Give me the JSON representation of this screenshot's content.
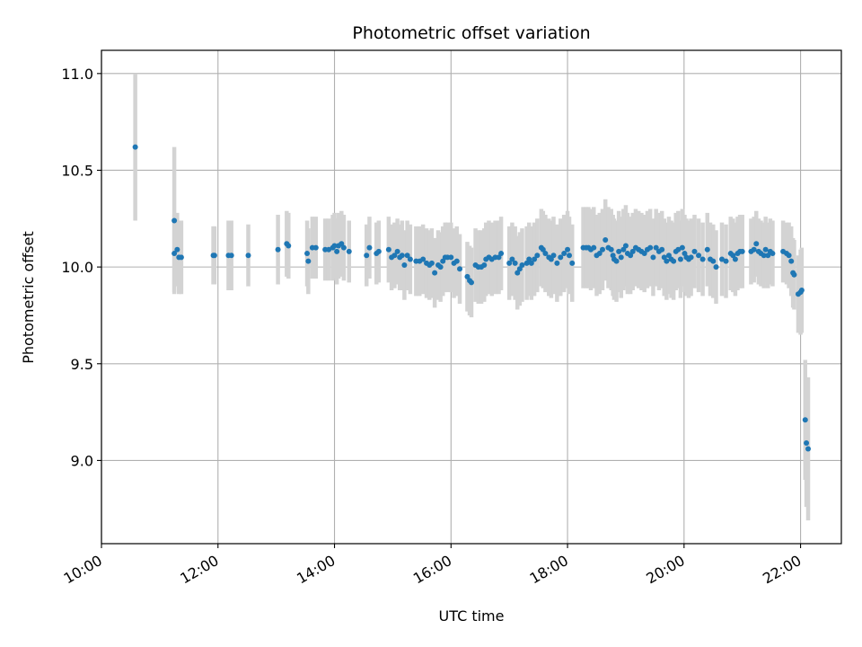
{
  "chart_data": {
    "type": "scatter",
    "title": "Photometric offset variation",
    "xlabel": "UTC time",
    "ylabel": "Photometric offset",
    "x_unit": "hours UTC",
    "xlim": [
      10.0,
      22.7
    ],
    "ylim": [
      8.57,
      11.12
    ],
    "x_ticks": [
      10,
      12,
      14,
      16,
      18,
      20,
      22
    ],
    "x_tick_labels": [
      "10:00",
      "12:00",
      "14:00",
      "16:00",
      "18:00",
      "20:00",
      "22:00"
    ],
    "y_ticks": [
      9.0,
      9.5,
      10.0,
      10.5,
      11.0
    ],
    "y_tick_labels": [
      "9.0",
      "9.5",
      "10.0",
      "10.5",
      "11.0"
    ],
    "grid": true,
    "legend": "none",
    "colors": {
      "point": "#1f77b4",
      "errorbar": "#d3d3d3",
      "grid": "#b0b0b0"
    },
    "series": [
      {
        "points": [
          [
            10.58,
            10.62,
            0.38
          ],
          [
            11.25,
            10.24,
            0.38
          ],
          [
            11.25,
            10.07,
            0.2
          ],
          [
            11.3,
            10.09,
            0.19
          ],
          [
            11.33,
            10.05,
            0.19
          ],
          [
            11.37,
            10.05,
            0.19
          ],
          [
            11.92,
            10.06,
            0.15
          ],
          [
            11.94,
            10.06,
            0.15
          ],
          [
            12.18,
            10.06,
            0.18
          ],
          [
            12.23,
            10.06,
            0.18
          ],
          [
            12.52,
            10.06,
            0.16
          ],
          [
            13.03,
            10.09,
            0.18
          ],
          [
            13.18,
            10.12,
            0.17
          ],
          [
            13.21,
            10.11,
            0.17
          ],
          [
            13.53,
            10.07,
            0.17
          ],
          [
            13.55,
            10.03,
            0.17
          ],
          [
            13.62,
            10.1,
            0.16
          ],
          [
            13.68,
            10.1,
            0.16
          ],
          [
            13.84,
            10.09,
            0.16
          ],
          [
            13.9,
            10.09,
            0.16
          ],
          [
            13.97,
            10.1,
            0.17
          ],
          [
            14.0,
            10.11,
            0.17
          ],
          [
            14.04,
            10.08,
            0.17
          ],
          [
            14.07,
            10.11,
            0.17
          ],
          [
            14.12,
            10.12,
            0.17
          ],
          [
            14.16,
            10.1,
            0.17
          ],
          [
            14.25,
            10.08,
            0.16
          ],
          [
            14.55,
            10.06,
            0.16
          ],
          [
            14.6,
            10.1,
            0.16
          ],
          [
            14.72,
            10.07,
            0.16
          ],
          [
            14.76,
            10.08,
            0.16
          ],
          [
            14.93,
            10.09,
            0.17
          ],
          [
            14.98,
            10.05,
            0.17
          ],
          [
            15.03,
            10.06,
            0.17
          ],
          [
            15.08,
            10.08,
            0.17
          ],
          [
            15.12,
            10.05,
            0.17
          ],
          [
            15.16,
            10.06,
            0.18
          ],
          [
            15.2,
            10.01,
            0.18
          ],
          [
            15.25,
            10.06,
            0.18
          ],
          [
            15.3,
            10.04,
            0.18
          ],
          [
            15.4,
            10.03,
            0.18
          ],
          [
            15.46,
            10.03,
            0.18
          ],
          [
            15.52,
            10.04,
            0.18
          ],
          [
            15.58,
            10.02,
            0.18
          ],
          [
            15.63,
            10.01,
            0.18
          ],
          [
            15.67,
            10.02,
            0.18
          ],
          [
            15.72,
            9.97,
            0.18
          ],
          [
            15.78,
            10.01,
            0.18
          ],
          [
            15.82,
            10.0,
            0.18
          ],
          [
            15.86,
            10.03,
            0.18
          ],
          [
            15.9,
            10.05,
            0.18
          ],
          [
            15.94,
            10.05,
            0.18
          ],
          [
            16.0,
            10.05,
            0.18
          ],
          [
            16.05,
            10.02,
            0.18
          ],
          [
            16.1,
            10.03,
            0.18
          ],
          [
            16.15,
            9.99,
            0.18
          ],
          [
            16.28,
            9.95,
            0.18
          ],
          [
            16.32,
            9.93,
            0.18
          ],
          [
            16.35,
            9.92,
            0.18
          ],
          [
            16.42,
            10.01,
            0.19
          ],
          [
            16.47,
            10.0,
            0.19
          ],
          [
            16.52,
            10.0,
            0.19
          ],
          [
            16.57,
            10.01,
            0.19
          ],
          [
            16.6,
            10.04,
            0.19
          ],
          [
            16.65,
            10.05,
            0.19
          ],
          [
            16.7,
            10.04,
            0.19
          ],
          [
            16.76,
            10.05,
            0.19
          ],
          [
            16.82,
            10.05,
            0.19
          ],
          [
            16.86,
            10.07,
            0.19
          ],
          [
            17.0,
            10.02,
            0.19
          ],
          [
            17.05,
            10.04,
            0.19
          ],
          [
            17.1,
            10.02,
            0.19
          ],
          [
            17.14,
            9.97,
            0.19
          ],
          [
            17.18,
            9.99,
            0.19
          ],
          [
            17.22,
            10.01,
            0.19
          ],
          [
            17.3,
            10.02,
            0.19
          ],
          [
            17.34,
            10.04,
            0.19
          ],
          [
            17.38,
            10.02,
            0.19
          ],
          [
            17.43,
            10.04,
            0.19
          ],
          [
            17.48,
            10.06,
            0.19
          ],
          [
            17.55,
            10.1,
            0.2
          ],
          [
            17.58,
            10.09,
            0.2
          ],
          [
            17.62,
            10.07,
            0.2
          ],
          [
            17.68,
            10.05,
            0.2
          ],
          [
            17.72,
            10.04,
            0.2
          ],
          [
            17.76,
            10.06,
            0.2
          ],
          [
            17.82,
            10.02,
            0.2
          ],
          [
            17.88,
            10.05,
            0.2
          ],
          [
            17.94,
            10.07,
            0.2
          ],
          [
            18.0,
            10.09,
            0.2
          ],
          [
            18.03,
            10.06,
            0.2
          ],
          [
            18.08,
            10.02,
            0.2
          ],
          [
            18.27,
            10.1,
            0.21
          ],
          [
            18.32,
            10.1,
            0.21
          ],
          [
            18.36,
            10.1,
            0.21
          ],
          [
            18.4,
            10.09,
            0.21
          ],
          [
            18.45,
            10.1,
            0.21
          ],
          [
            18.5,
            10.06,
            0.21
          ],
          [
            18.55,
            10.07,
            0.21
          ],
          [
            18.6,
            10.09,
            0.21
          ],
          [
            18.65,
            10.14,
            0.21
          ],
          [
            18.7,
            10.1,
            0.21
          ],
          [
            18.75,
            10.09,
            0.21
          ],
          [
            18.78,
            10.06,
            0.21
          ],
          [
            18.8,
            10.04,
            0.21
          ],
          [
            18.84,
            10.03,
            0.21
          ],
          [
            18.88,
            10.08,
            0.21
          ],
          [
            18.92,
            10.05,
            0.21
          ],
          [
            18.96,
            10.09,
            0.21
          ],
          [
            19.0,
            10.11,
            0.21
          ],
          [
            19.03,
            10.07,
            0.21
          ],
          [
            19.08,
            10.06,
            0.2
          ],
          [
            19.12,
            10.08,
            0.2
          ],
          [
            19.17,
            10.1,
            0.2
          ],
          [
            19.22,
            10.09,
            0.2
          ],
          [
            19.27,
            10.08,
            0.2
          ],
          [
            19.32,
            10.07,
            0.2
          ],
          [
            19.37,
            10.09,
            0.2
          ],
          [
            19.42,
            10.1,
            0.2
          ],
          [
            19.47,
            10.05,
            0.2
          ],
          [
            19.52,
            10.1,
            0.2
          ],
          [
            19.57,
            10.08,
            0.2
          ],
          [
            19.62,
            10.09,
            0.2
          ],
          [
            19.66,
            10.05,
            0.2
          ],
          [
            19.7,
            10.03,
            0.2
          ],
          [
            19.74,
            10.06,
            0.2
          ],
          [
            19.78,
            10.04,
            0.2
          ],
          [
            19.82,
            10.03,
            0.2
          ],
          [
            19.86,
            10.08,
            0.2
          ],
          [
            19.9,
            10.09,
            0.2
          ],
          [
            19.94,
            10.04,
            0.2
          ],
          [
            19.97,
            10.1,
            0.2
          ],
          [
            20.01,
            10.07,
            0.2
          ],
          [
            20.04,
            10.05,
            0.2
          ],
          [
            20.08,
            10.04,
            0.2
          ],
          [
            20.12,
            10.05,
            0.2
          ],
          [
            20.18,
            10.08,
            0.19
          ],
          [
            20.25,
            10.06,
            0.19
          ],
          [
            20.32,
            10.04,
            0.19
          ],
          [
            20.4,
            10.09,
            0.19
          ],
          [
            20.45,
            10.04,
            0.19
          ],
          [
            20.5,
            10.03,
            0.19
          ],
          [
            20.55,
            10.0,
            0.19
          ],
          [
            20.65,
            10.04,
            0.19
          ],
          [
            20.72,
            10.03,
            0.19
          ],
          [
            20.8,
            10.07,
            0.19
          ],
          [
            20.84,
            10.06,
            0.19
          ],
          [
            20.88,
            10.04,
            0.19
          ],
          [
            20.92,
            10.07,
            0.19
          ],
          [
            20.96,
            10.08,
            0.19
          ],
          [
            21.0,
            10.08,
            0.19
          ],
          [
            21.15,
            10.08,
            0.17
          ],
          [
            21.2,
            10.09,
            0.17
          ],
          [
            21.24,
            10.12,
            0.17
          ],
          [
            21.28,
            10.08,
            0.17
          ],
          [
            21.32,
            10.07,
            0.17
          ],
          [
            21.37,
            10.06,
            0.17
          ],
          [
            21.4,
            10.09,
            0.17
          ],
          [
            21.44,
            10.06,
            0.17
          ],
          [
            21.48,
            10.08,
            0.17
          ],
          [
            21.52,
            10.07,
            0.17
          ],
          [
            21.7,
            10.08,
            0.16
          ],
          [
            21.76,
            10.07,
            0.16
          ],
          [
            21.8,
            10.06,
            0.17
          ],
          [
            21.84,
            10.03,
            0.18
          ],
          [
            21.87,
            9.97,
            0.18
          ],
          [
            21.89,
            9.96,
            0.18
          ],
          [
            21.96,
            9.86,
            0.2
          ],
          [
            22.0,
            9.87,
            0.22
          ],
          [
            22.02,
            9.88,
            0.22
          ],
          [
            22.08,
            9.21,
            0.31
          ],
          [
            22.1,
            9.09,
            0.33
          ],
          [
            22.13,
            9.06,
            0.37
          ]
        ]
      }
    ]
  }
}
